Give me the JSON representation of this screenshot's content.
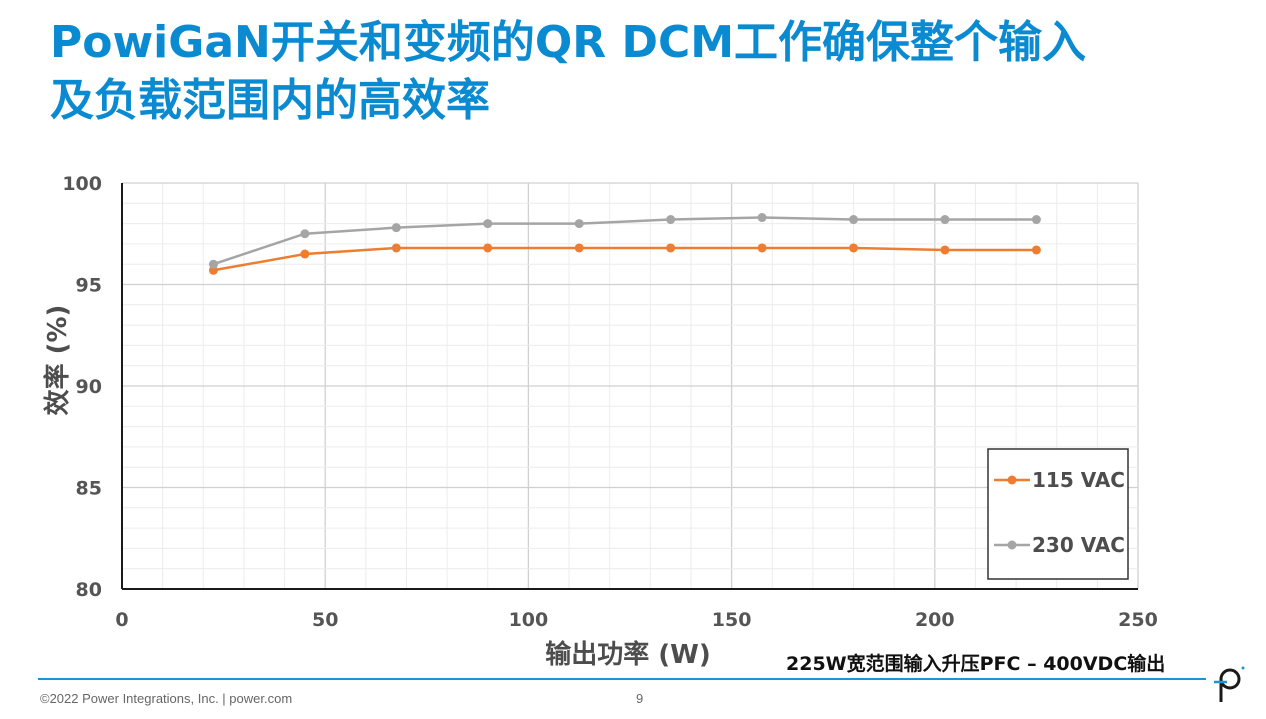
{
  "slide": {
    "title_line1": "PowiGaN开关和变频的QR DCM工作确保整个输入",
    "title_line2": "及负载范围内的高效率",
    "subtitle": "225W宽范围输入升压PFC – 400VDC输出",
    "footer": "©2022 Power Integrations, Inc.  |  power.com",
    "page_number": "9",
    "logo_icon": "power-integrations-p-logo"
  },
  "colors": {
    "title": "#0a8ad1",
    "series_115": "#ed7d31",
    "series_230": "#a5a5a5",
    "grid": "#d9d9d9",
    "footer_rule": "#1a95d5"
  },
  "chart_data": {
    "type": "line",
    "xlabel": "输出功率 (W)",
    "ylabel": "效率 (%)",
    "xlim": [
      0,
      250
    ],
    "ylim": [
      80,
      100
    ],
    "x_ticks": [
      "0",
      "50",
      "100",
      "150",
      "200",
      "250"
    ],
    "y_ticks": [
      "80",
      "85",
      "90",
      "95",
      "100"
    ],
    "grid": true,
    "legend_position": "bottom-right",
    "series": [
      {
        "name": "115 VAC",
        "color": "#ed7d31",
        "x": [
          22.5,
          45,
          67.5,
          90,
          112.5,
          135,
          157.5,
          180,
          202.5,
          225
        ],
        "y": [
          95.7,
          96.5,
          96.8,
          96.8,
          96.8,
          96.8,
          96.8,
          96.8,
          96.7,
          96.7
        ]
      },
      {
        "name": "230 VAC",
        "color": "#a5a5a5",
        "x": [
          22.5,
          45,
          67.5,
          90,
          112.5,
          135,
          157.5,
          180,
          202.5,
          225
        ],
        "y": [
          96.0,
          97.5,
          97.8,
          98.0,
          98.0,
          98.2,
          98.3,
          98.2,
          98.2,
          98.2
        ]
      }
    ]
  }
}
